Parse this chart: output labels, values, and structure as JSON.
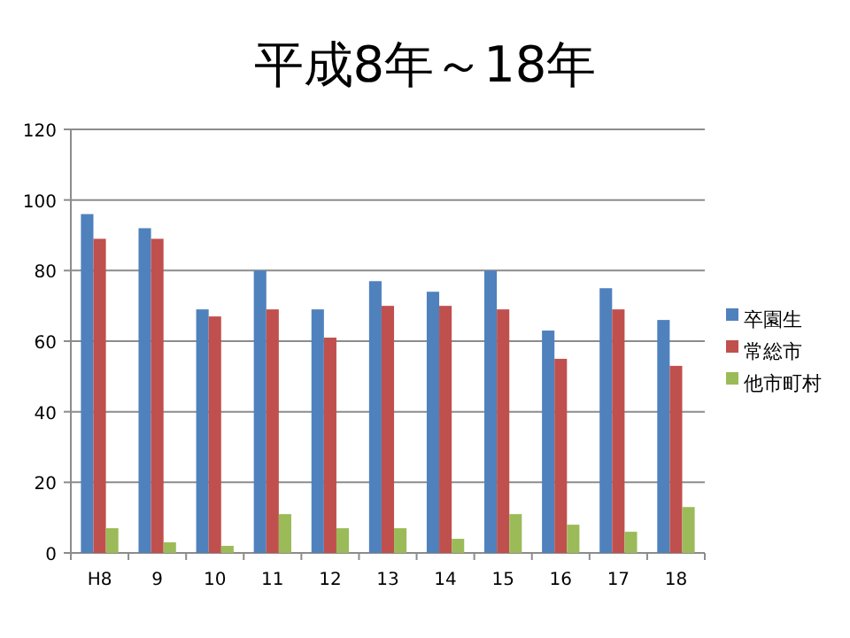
{
  "chart_data": {
    "type": "bar",
    "title": "平成8年～18年",
    "categories": [
      "H8",
      "9",
      "10",
      "11",
      "12",
      "13",
      "14",
      "15",
      "16",
      "17",
      "18"
    ],
    "series": [
      {
        "name": "卒園生",
        "color": "#4f81bd",
        "values": [
          96,
          92,
          69,
          80,
          69,
          77,
          74,
          80,
          63,
          75,
          66
        ]
      },
      {
        "name": "常総市",
        "color": "#c0504d",
        "values": [
          89,
          89,
          67,
          69,
          61,
          70,
          70,
          69,
          55,
          69,
          53
        ]
      },
      {
        "name": "他市町村",
        "color": "#9bbb59",
        "values": [
          7,
          3,
          2,
          11,
          7,
          7,
          4,
          11,
          8,
          6,
          13
        ]
      }
    ],
    "ylim": [
      0,
      120
    ],
    "yticks": [
      0,
      20,
      40,
      60,
      80,
      100,
      120
    ],
    "grid": "y",
    "legend": "right"
  }
}
